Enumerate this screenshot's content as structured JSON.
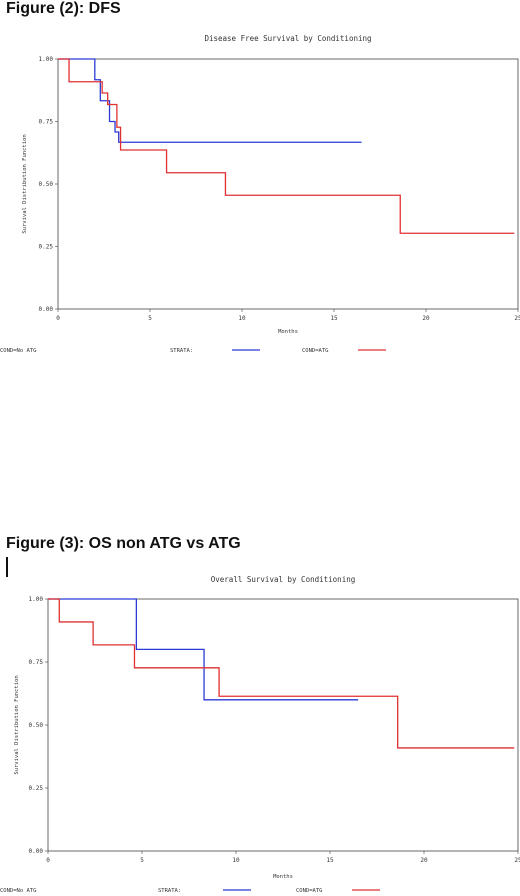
{
  "headings": {
    "fig2": "Figure (2): DFS",
    "fig3": "Figure (3): OS non ATG vs ATG"
  },
  "chart_data": [
    {
      "type": "line",
      "step": "post",
      "title": "Disease Free Survival by Conditioning",
      "xlabel": "Months",
      "ylabel": "Survival Distribution Function",
      "xlim": [
        0,
        25
      ],
      "ylim": [
        0,
        1
      ],
      "xticks": [
        "0",
        "5",
        "10",
        "15",
        "20",
        "25"
      ],
      "yticks": [
        "0.00",
        "0.25",
        "0.50",
        "0.75",
        "1.00"
      ],
      "legend_title": "STRATA:",
      "legend_position": "bottom",
      "series": [
        {
          "name": "COND=ATG",
          "color": "#2b3bd6",
          "x": [
            0,
            2.0,
            2.3,
            2.8,
            3.1,
            3.3,
            16.5
          ],
          "y": [
            1.0,
            0.917,
            0.833,
            0.75,
            0.708,
            0.667,
            0.667
          ]
        },
        {
          "name": "COND=No ATG",
          "color": "#e03030",
          "x": [
            0,
            0.6,
            2.4,
            2.7,
            3.2,
            3.4,
            5.9,
            9.1,
            18.6,
            24.8
          ],
          "y": [
            1.0,
            0.909,
            0.864,
            0.818,
            0.727,
            0.636,
            0.545,
            0.455,
            0.303,
            0.303
          ]
        }
      ]
    },
    {
      "type": "line",
      "step": "post",
      "title": "Overall Survival by Conditioning",
      "xlabel": "Months",
      "ylabel": "Survival Distribution Function",
      "xlim": [
        0,
        25
      ],
      "ylim": [
        0,
        1
      ],
      "xticks": [
        "0",
        "5",
        "10",
        "15",
        "20",
        "25"
      ],
      "yticks": [
        "0.00",
        "0.25",
        "0.50",
        "0.75",
        "1.00"
      ],
      "legend_title": "STRATA:",
      "legend_position": "bottom",
      "series": [
        {
          "name": "COND=ATG",
          "color": "#2b3bd6",
          "x": [
            0,
            4.7,
            8.3,
            16.5
          ],
          "y": [
            1.0,
            0.8,
            0.6,
            0.6
          ]
        },
        {
          "name": "COND=No ATG",
          "color": "#e03030",
          "x": [
            0,
            0.6,
            2.4,
            4.6,
            9.1,
            18.6,
            24.8
          ],
          "y": [
            1.0,
            0.909,
            0.818,
            0.727,
            0.614,
            0.409,
            0.409
          ]
        }
      ]
    }
  ]
}
